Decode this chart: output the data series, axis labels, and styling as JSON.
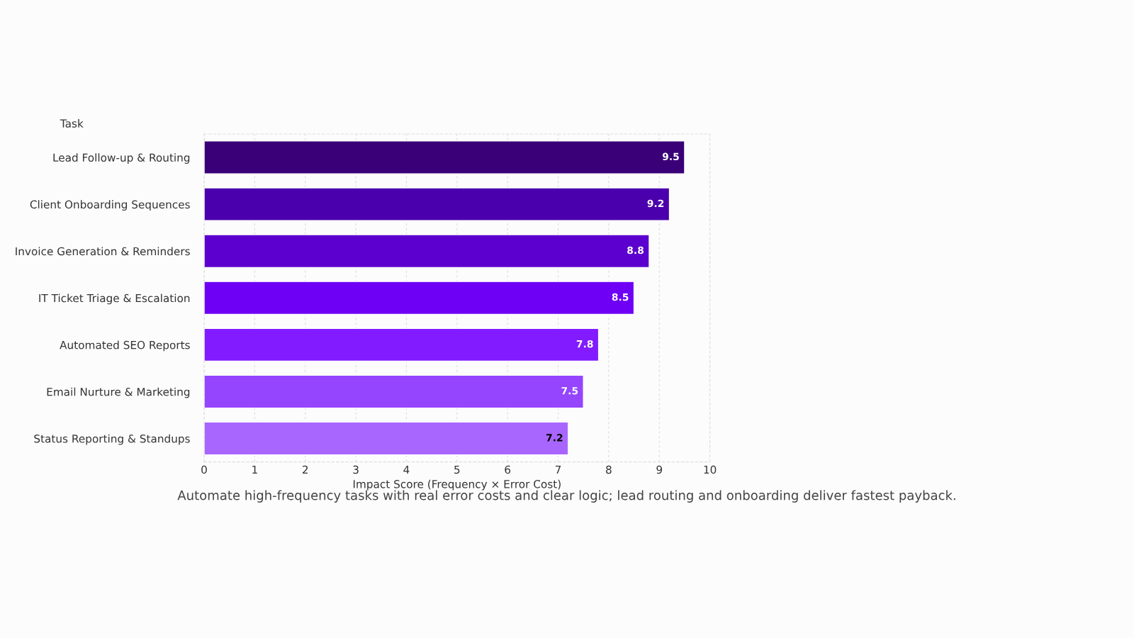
{
  "chart_data": {
    "type": "bar",
    "orientation": "horizontal",
    "ylabel": "Task",
    "xlabel": "Impact Score (Frequency × Error Cost)",
    "categories": [
      "Lead Follow-up & Routing",
      "Client Onboarding Sequences",
      "Invoice Generation & Reminders",
      "IT Ticket Triage & Escalation",
      "Automated SEO Reports",
      "Email Nurture & Marketing",
      "Status Reporting & Standups"
    ],
    "values": [
      9.5,
      9.2,
      8.8,
      8.5,
      7.8,
      7.5,
      7.2
    ],
    "colors": [
      "#390077",
      "#4b00ad",
      "#5c00cf",
      "#6e00f5",
      "#821bff",
      "#9645ff",
      "#a866ff"
    ],
    "xlim": [
      0,
      10
    ],
    "xticks": [
      0,
      1,
      2,
      3,
      4,
      5,
      6,
      7,
      8,
      9,
      10
    ],
    "grid": "x",
    "data_labels": true,
    "annotations": [
      "Automate high-frequency tasks with real error costs and clear logic; lead routing and onboarding deliver fastest payback."
    ]
  }
}
